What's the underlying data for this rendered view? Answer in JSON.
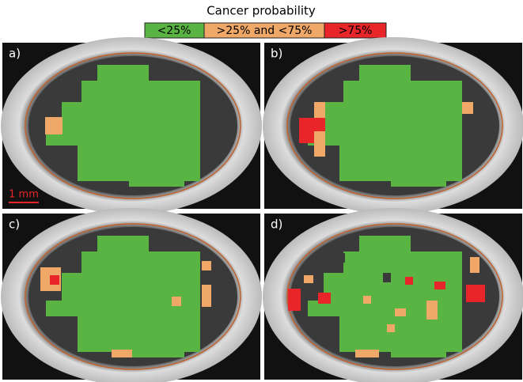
{
  "legend": {
    "title": "Cancer probability",
    "items": [
      "<25%",
      ">25% and <75%",
      ">75%"
    ]
  },
  "panels": [
    "a)",
    "b)",
    "c)",
    "d)"
  ],
  "scale_bar": "1 mm"
}
